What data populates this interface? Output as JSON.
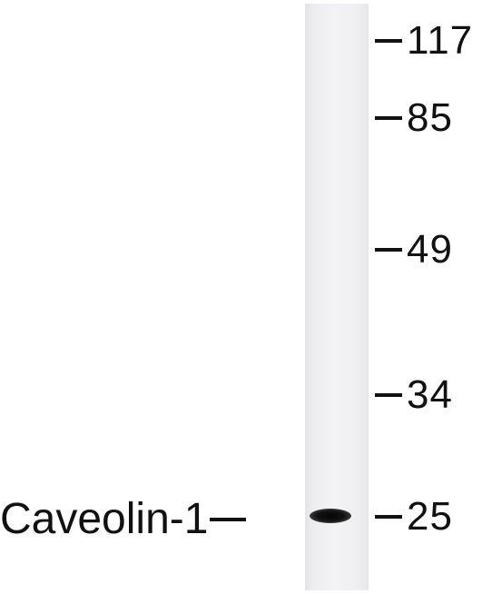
{
  "markers": [
    {
      "label": "117"
    },
    {
      "label": "85"
    },
    {
      "label": "49"
    },
    {
      "label": "34"
    },
    {
      "label": "25"
    }
  ],
  "target": {
    "label": "Caveolin-1"
  },
  "colors": {
    "band": "#111111",
    "lane": "#f0f0f2",
    "text": "#111111",
    "background": "#ffffff"
  }
}
